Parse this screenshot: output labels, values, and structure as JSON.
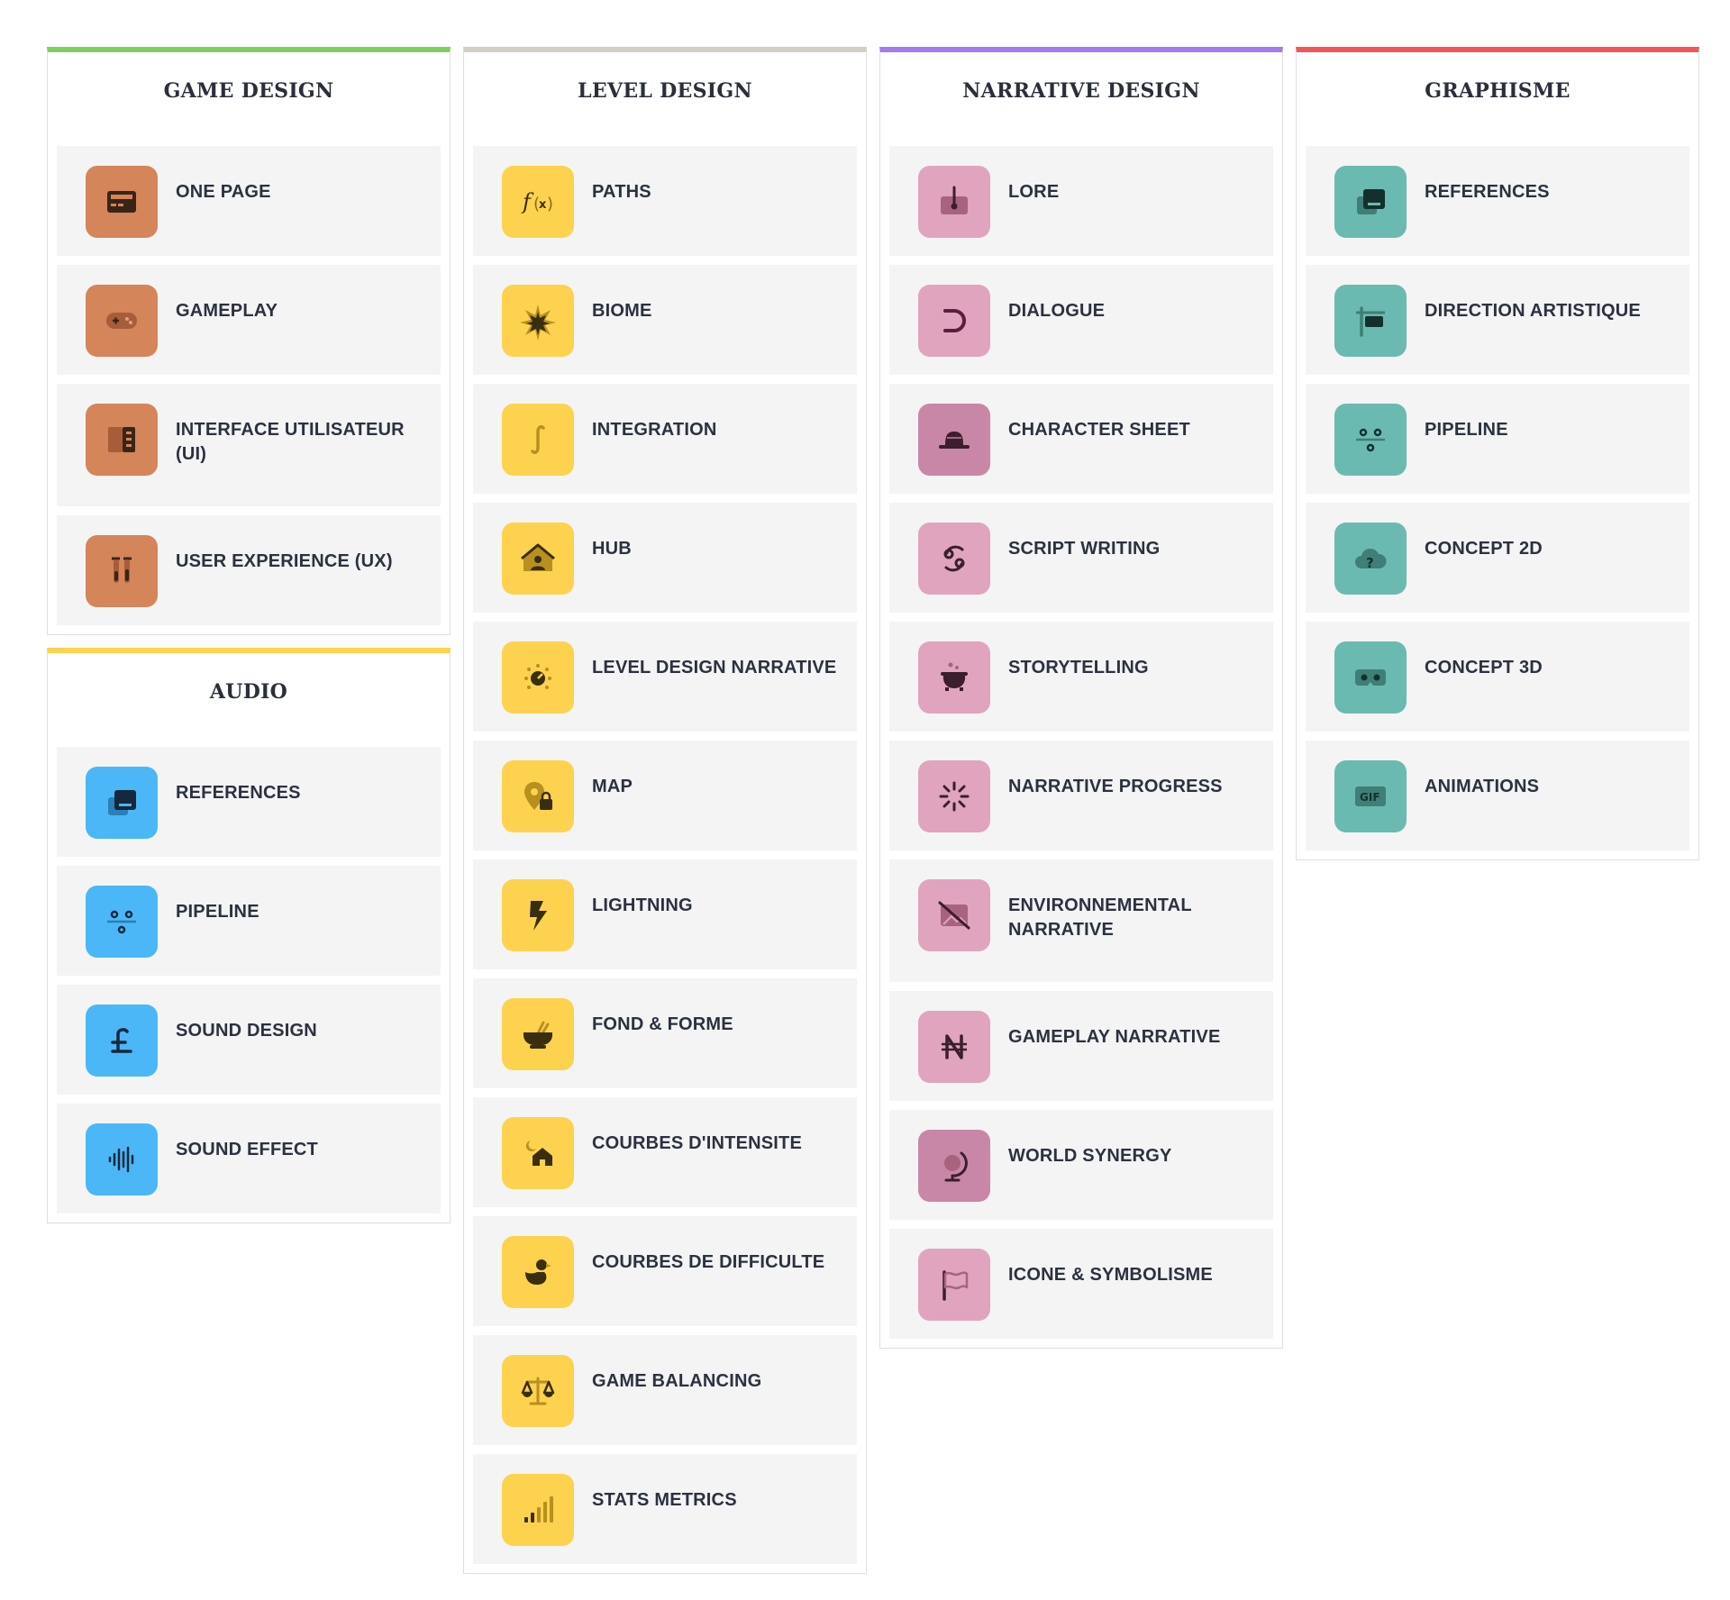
{
  "colors": {
    "game_design_accent": "#7ed05a",
    "level_design_accent": "#d2d0c4",
    "narrative_design_accent": "#a57af0",
    "graphisme_accent": "#f25757",
    "audio_accent": "#fdd250",
    "game_design_tile": "#d4855a",
    "level_design_tile": "#fdd24f",
    "narrative_design_tile": "#e0a4bf",
    "narrative_design_tile_dark": "#c987a7",
    "graphisme_tile": "#6bbab1",
    "audio_tile": "#4bb7f7"
  },
  "game_design": {
    "title": "GAME DESIGN",
    "items": [
      {
        "label": "ONE PAGE",
        "icon": "id-card-icon"
      },
      {
        "label": "GAMEPLAY",
        "icon": "gamepad-icon"
      },
      {
        "label": "INTERFACE UTILISATEUR (UI)",
        "icon": "sidebar-panel-icon"
      },
      {
        "label": "USER EXPERIENCE (UX)",
        "icon": "test-tubes-icon"
      }
    ]
  },
  "audio": {
    "title": "AUDIO",
    "items": [
      {
        "label": "REFERENCES",
        "icon": "books-stack-icon"
      },
      {
        "label": "PIPELINE",
        "icon": "pipeline-nodes-icon"
      },
      {
        "label": "SOUND DESIGN",
        "icon": "pound-sign-icon"
      },
      {
        "label": "SOUND EFFECT",
        "icon": "waveform-icon"
      }
    ]
  },
  "level_design": {
    "title": "LEVEL DESIGN",
    "items": [
      {
        "label": "PATHS",
        "icon": "function-icon"
      },
      {
        "label": "BIOME",
        "icon": "burst-icon"
      },
      {
        "label": "INTEGRATION",
        "icon": "integral-icon"
      },
      {
        "label": "HUB",
        "icon": "house-user-icon"
      },
      {
        "label": "LEVEL DESIGN NARRATIVE",
        "icon": "dial-icon"
      },
      {
        "label": "MAP",
        "icon": "map-pin-lock-icon"
      },
      {
        "label": "LIGHTNING",
        "icon": "lightning-bolt-icon"
      },
      {
        "label": "FOND & FORME",
        "icon": "mortar-pestle-icon"
      },
      {
        "label": "COURBES D'INTENSITE",
        "icon": "house-moon-icon"
      },
      {
        "label": "COURBES DE DIFFICULTE",
        "icon": "duck-icon"
      },
      {
        "label": "GAME BALANCING",
        "icon": "scales-icon"
      },
      {
        "label": "STATS METRICS",
        "icon": "signal-bars-icon"
      }
    ]
  },
  "narrative_design": {
    "title": "NARRATIVE DESIGN",
    "items": [
      {
        "label": "LORE",
        "icon": "inbox-pin-icon"
      },
      {
        "label": "DIALOGUE",
        "icon": "horseshoe-icon"
      },
      {
        "label": "CHARACTER SHEET",
        "icon": "hat-icon"
      },
      {
        "label": "SCRIPT WRITING",
        "icon": "cancer-sign-icon"
      },
      {
        "label": "STORYTELLING",
        "icon": "cauldron-icon"
      },
      {
        "label": "NARRATIVE PROGRESS",
        "icon": "loader-icon"
      },
      {
        "label": "ENVIRONNEMENTAL NARRATIVE",
        "icon": "image-off-icon"
      },
      {
        "label": "GAMEPLAY NARRATIVE",
        "icon": "naira-icon"
      },
      {
        "label": "WORLD SYNERGY",
        "icon": "globe-stand-icon"
      },
      {
        "label": "ICONE & SYMBOLISME",
        "icon": "flag-icon"
      }
    ]
  },
  "graphisme": {
    "title": "GRAPHISME",
    "items": [
      {
        "label": "REFERENCES",
        "icon": "books-stack-icon"
      },
      {
        "label": "DIRECTION ARTISTIQUE",
        "icon": "signpost-icon"
      },
      {
        "label": "PIPELINE",
        "icon": "pipeline-nodes-icon"
      },
      {
        "label": "CONCEPT 2D",
        "icon": "cloud-question-icon"
      },
      {
        "label": "CONCEPT 3D",
        "icon": "vr-headset-icon"
      },
      {
        "label": "ANIMATIONS",
        "icon": "gif-icon"
      }
    ]
  }
}
